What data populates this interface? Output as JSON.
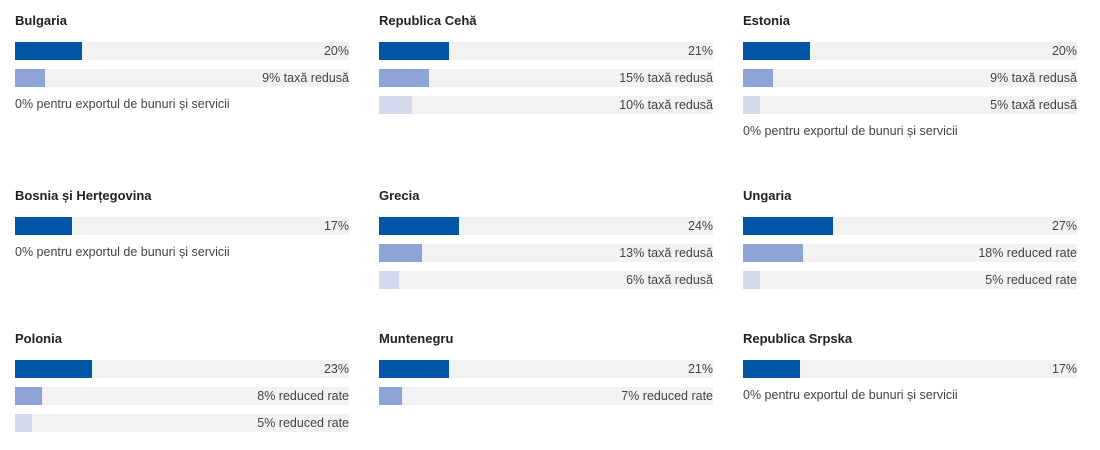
{
  "colors": {
    "tier1": "#0055a4",
    "tier2": "#8fa4d6",
    "tier3": "#d4d9ee",
    "track": "#f2f2f2"
  },
  "chart_data": {
    "type": "bar",
    "unit": "%",
    "xlim": [
      0,
      100
    ],
    "grid": false,
    "countries": [
      {
        "name": "Bulgaria",
        "rates": [
          {
            "value": 20,
            "label": "20%"
          },
          {
            "value": 9,
            "label": "9% taxă redusă"
          }
        ],
        "note": "0% pentru exportul de bunuri și servicii"
      },
      {
        "name": "Republica Cehă",
        "rates": [
          {
            "value": 21,
            "label": "21%"
          },
          {
            "value": 15,
            "label": "15% taxă redusă"
          },
          {
            "value": 10,
            "label": "10% taxă redusă"
          }
        ]
      },
      {
        "name": "Estonia",
        "rates": [
          {
            "value": 20,
            "label": "20%"
          },
          {
            "value": 9,
            "label": "9% taxă redusă"
          },
          {
            "value": 5,
            "label": "5% taxă redusă"
          }
        ],
        "note": "0% pentru exportul de bunuri și servicii"
      },
      {
        "name": "Bosnia și Herțegovina",
        "rates": [
          {
            "value": 17,
            "label": "17%"
          }
        ],
        "note": "0% pentru exportul de bunuri și servicii"
      },
      {
        "name": "Grecia",
        "rates": [
          {
            "value": 24,
            "label": "24%"
          },
          {
            "value": 13,
            "label": "13% taxă redusă"
          },
          {
            "value": 6,
            "label": "6% taxă redusă"
          }
        ]
      },
      {
        "name": "Ungaria",
        "rates": [
          {
            "value": 27,
            "label": "27%"
          },
          {
            "value": 18,
            "label": "18% reduced rate"
          },
          {
            "value": 5,
            "label": "5% reduced rate"
          }
        ]
      },
      {
        "name": "Polonia",
        "rates": [
          {
            "value": 23,
            "label": "23%"
          },
          {
            "value": 8,
            "label": "8% reduced rate"
          },
          {
            "value": 5,
            "label": "5% reduced rate"
          }
        ]
      },
      {
        "name": "Muntenegru",
        "rates": [
          {
            "value": 21,
            "label": "21%"
          },
          {
            "value": 7,
            "label": "7% reduced rate"
          }
        ]
      },
      {
        "name": "Republica Srpska",
        "rates": [
          {
            "value": 17,
            "label": "17%"
          }
        ],
        "note": "0% pentru exportul de bunuri și servicii"
      }
    ]
  }
}
